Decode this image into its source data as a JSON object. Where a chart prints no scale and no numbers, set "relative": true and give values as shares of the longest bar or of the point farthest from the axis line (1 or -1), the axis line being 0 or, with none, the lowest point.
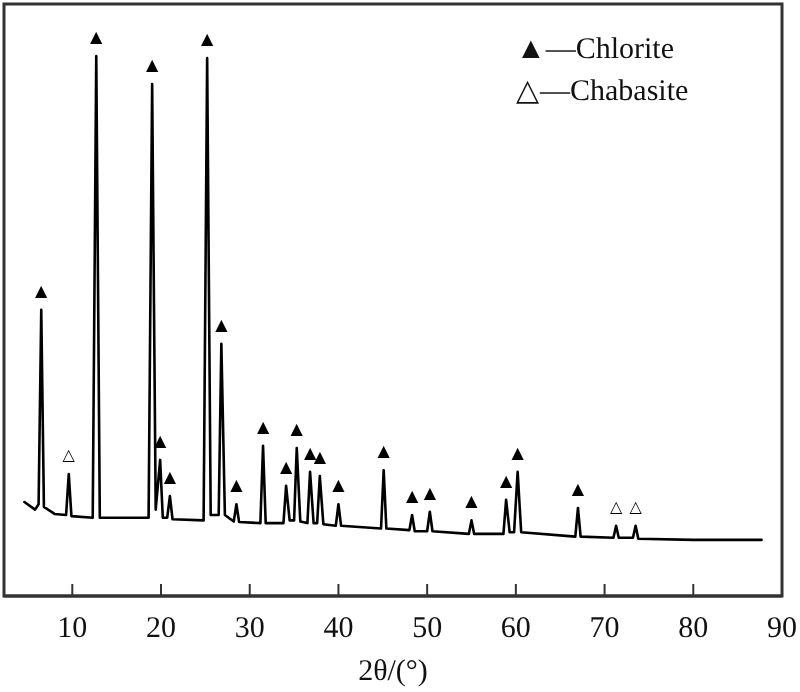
{
  "chart_data": {
    "type": "line",
    "relative": true,
    "xlabel": "2θ/(°)",
    "xlim": [
      2.3,
      90
    ],
    "xticks": [
      10,
      20,
      30,
      40,
      50,
      60,
      70,
      80,
      90
    ],
    "tick_labels": "x",
    "grid": false,
    "marker": "none",
    "line_style": "solid",
    "series": [
      {
        "color": "#000000",
        "x": [
          4.6,
          5.8,
          6.2,
          6.5,
          6.8,
          8.0,
          9.3,
          9.6,
          9.9,
          12.3,
          12.7,
          13.1,
          18.6,
          19.0,
          19.4,
          19.9,
          20.2,
          20.7,
          21.0,
          21.3,
          24.8,
          25.2,
          25.6,
          26.5,
          26.8,
          27.2,
          28.2,
          28.5,
          28.8,
          31.2,
          31.5,
          31.8,
          33.8,
          34.1,
          34.5,
          35.0,
          35.3,
          35.7,
          36.5,
          36.8,
          37.2,
          37.6,
          37.9,
          38.3,
          39.7,
          40.0,
          40.3,
          44.8,
          45.1,
          45.4,
          48.0,
          48.3,
          48.6,
          50.0,
          50.3,
          50.6,
          54.7,
          55.0,
          55.3,
          58.6,
          58.9,
          59.3,
          59.8,
          60.2,
          60.6,
          66.7,
          67.0,
          67.3,
          71.0,
          71.3,
          71.6,
          73.2,
          73.5,
          73.8,
          80.0,
          87.7
        ],
        "values": [
          0.174,
          0.16,
          0.17,
          0.53,
          0.165,
          0.152,
          0.15,
          0.226,
          0.148,
          0.145,
          1.0,
          0.145,
          0.145,
          0.948,
          0.16,
          0.252,
          0.145,
          0.145,
          0.185,
          0.142,
          0.14,
          0.996,
          0.15,
          0.15,
          0.467,
          0.15,
          0.138,
          0.17,
          0.137,
          0.135,
          0.278,
          0.135,
          0.135,
          0.204,
          0.14,
          0.14,
          0.274,
          0.138,
          0.135,
          0.23,
          0.135,
          0.135,
          0.222,
          0.133,
          0.13,
          0.17,
          0.13,
          0.125,
          0.233,
          0.125,
          0.122,
          0.15,
          0.12,
          0.12,
          0.156,
          0.12,
          0.115,
          0.14,
          0.115,
          0.115,
          0.178,
          0.118,
          0.118,
          0.23,
          0.118,
          0.11,
          0.163,
          0.11,
          0.108,
          0.13,
          0.108,
          0.108,
          0.13,
          0.106,
          0.104,
          0.104
        ]
      }
    ],
    "annotations": [
      "▲—Chlorite",
      "△—Chabasite",
      {
        "text": "▲",
        "x": 6.5,
        "y": 0.53
      },
      {
        "text": "△",
        "x": 9.6,
        "y": 0.226
      },
      {
        "text": "▲",
        "x": 12.7,
        "y": 1.0
      },
      {
        "text": "▲",
        "x": 19.0,
        "y": 0.948
      },
      {
        "text": "▲",
        "x": 19.9,
        "y": 0.252
      },
      {
        "text": "▲",
        "x": 21.0,
        "y": 0.185
      },
      {
        "text": "▲",
        "x": 25.2,
        "y": 0.996
      },
      {
        "text": "▲",
        "x": 26.8,
        "y": 0.467
      },
      {
        "text": "▲",
        "x": 28.5,
        "y": 0.17
      },
      {
        "text": "▲",
        "x": 31.5,
        "y": 0.278
      },
      {
        "text": "▲",
        "x": 34.1,
        "y": 0.204
      },
      {
        "text": "▲",
        "x": 35.3,
        "y": 0.274
      },
      {
        "text": "▲",
        "x": 36.8,
        "y": 0.23
      },
      {
        "text": "▲",
        "x": 37.9,
        "y": 0.222
      },
      {
        "text": "▲",
        "x": 40.0,
        "y": 0.17
      },
      {
        "text": "▲",
        "x": 45.1,
        "y": 0.233
      },
      {
        "text": "▲",
        "x": 48.3,
        "y": 0.15
      },
      {
        "text": "▲",
        "x": 50.3,
        "y": 0.156
      },
      {
        "text": "▲",
        "x": 55.0,
        "y": 0.14
      },
      {
        "text": "▲",
        "x": 58.9,
        "y": 0.178
      },
      {
        "text": "▲",
        "x": 60.2,
        "y": 0.23
      },
      {
        "text": "▲",
        "x": 67.0,
        "y": 0.163
      },
      {
        "text": "△",
        "x": 71.3,
        "y": 0.13
      },
      {
        "text": "△",
        "x": 73.5,
        "y": 0.13
      }
    ]
  }
}
